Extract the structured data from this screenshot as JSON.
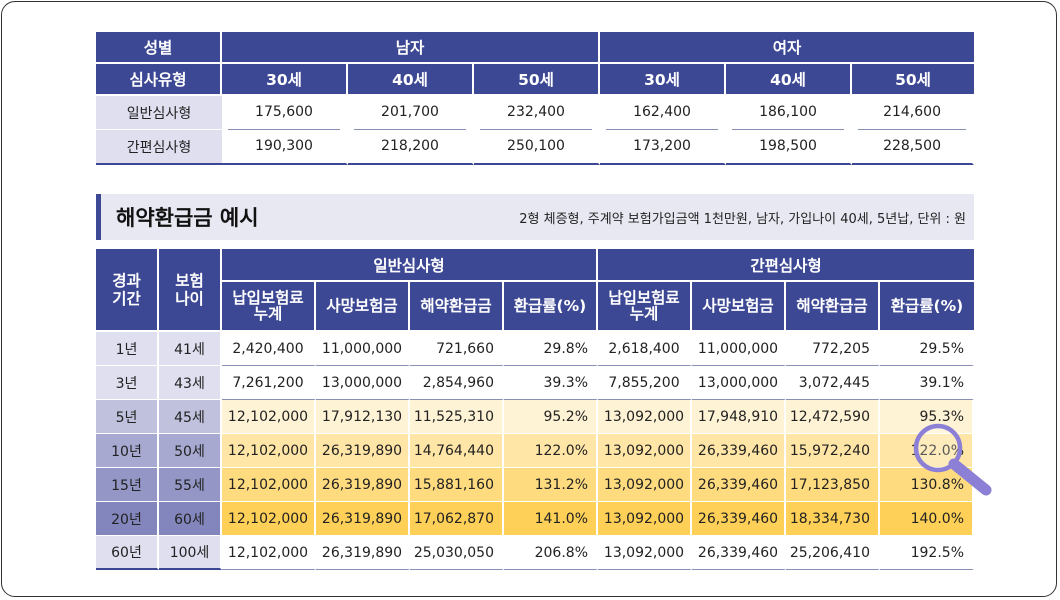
{
  "premium_table": {
    "header_row1": {
      "label": "성별",
      "male": "남자",
      "female": "여자"
    },
    "header_row2": {
      "label": "심사유형",
      "ages": [
        "30세",
        "40세",
        "50세",
        "30세",
        "40세",
        "50세"
      ]
    },
    "rows": [
      {
        "type": "일반심사형",
        "values": [
          "175,600",
          "201,700",
          "232,400",
          "162,400",
          "186,100",
          "214,600"
        ]
      },
      {
        "type": "간편심사형",
        "values": [
          "190,300",
          "218,200",
          "250,100",
          "173,200",
          "198,500",
          "228,500"
        ]
      }
    ]
  },
  "section": {
    "title": "해약환급금 예시",
    "note": "2형 체증형, 주계약 보험가입금액 1천만원, 남자, 가입나이 40세, 5년납, 단위 : 원"
  },
  "refund_table": {
    "header": {
      "period": "경과\n기간",
      "age": "보험\n나이",
      "general": "일반심사형",
      "simple": "간편심사형",
      "cols": [
        "납입보험료\n누계",
        "사망보험금",
        "해약환급금",
        "환급률(%)",
        "납입보험료\n누계",
        "사망보험금",
        "해약환급금",
        "환급률(%)"
      ]
    },
    "rows": [
      {
        "period": "1년",
        "age": "41세",
        "values": [
          "2,420,400",
          "11,000,000",
          "721,660",
          "29.8%",
          "2,618,400",
          "11,000,000",
          "772,205",
          "29.5%"
        ]
      },
      {
        "period": "3년",
        "age": "43세",
        "values": [
          "7,261,200",
          "13,000,000",
          "2,854,960",
          "39.3%",
          "7,855,200",
          "13,000,000",
          "3,072,445",
          "39.1%"
        ]
      },
      {
        "period": "5년",
        "age": "45세",
        "values": [
          "12,102,000",
          "17,912,130",
          "11,525,310",
          "95.2%",
          "13,092,000",
          "17,948,910",
          "12,472,590",
          "95.3%"
        ]
      },
      {
        "period": "10년",
        "age": "50세",
        "values": [
          "12,102,000",
          "26,319,890",
          "14,764,440",
          "122.0%",
          "13,092,000",
          "26,339,460",
          "15,972,240",
          "122.0%"
        ]
      },
      {
        "period": "15년",
        "age": "55세",
        "values": [
          "12,102,000",
          "26,319,890",
          "15,881,160",
          "131.2%",
          "13,092,000",
          "26,339,460",
          "17,123,850",
          "130.8%"
        ]
      },
      {
        "period": "20년",
        "age": "60세",
        "values": [
          "12,102,000",
          "26,319,890",
          "17,062,870",
          "141.0%",
          "13,092,000",
          "26,339,460",
          "18,334,730",
          "140.0%"
        ]
      },
      {
        "period": "60년",
        "age": "100세",
        "values": [
          "12,102,000",
          "26,319,890",
          "25,030,050",
          "206.8%",
          "13,092,000",
          "26,339,460",
          "25,206,410",
          "192.5%"
        ]
      }
    ]
  },
  "icons": {
    "magnifier": "magnifier-icon"
  },
  "colors": {
    "header": "#3d4894",
    "highlight": "#ffd057",
    "magnifier": "#8b7fd6"
  }
}
